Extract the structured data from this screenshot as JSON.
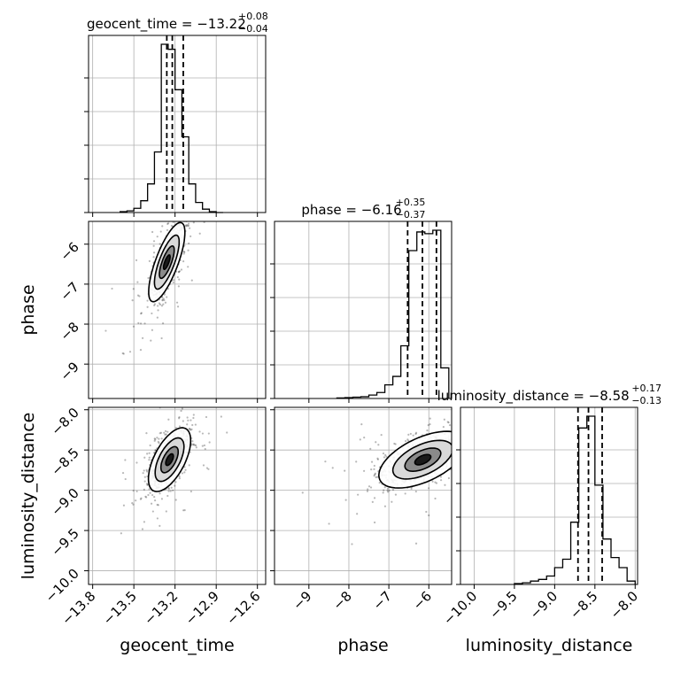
{
  "chart_data": {
    "type": "corner",
    "parameters": [
      "geocent_time",
      "phase",
      "luminosity_distance"
    ],
    "axis_labels": [
      "geocent_time",
      "phase",
      "luminosity_distance"
    ],
    "ranges": {
      "geocent_time": [
        -13.83,
        -12.54
      ],
      "phase": [
        -9.86,
        -5.43
      ],
      "luminosity_distance": [
        -10.17,
        -7.97
      ]
    },
    "ticks": {
      "geocent_time": [
        -13.8,
        -13.5,
        -13.2,
        -12.9,
        -12.6
      ],
      "phase": [
        -9,
        -8,
        -7,
        -6
      ],
      "luminosity_distance": [
        -10.0,
        -9.5,
        -9.0,
        -8.5,
        -8.0
      ]
    },
    "tick_labels": {
      "geocent_time": [
        "−13.8",
        "−13.5",
        "−13.2",
        "−12.9",
        "−12.6"
      ],
      "phase": [
        "−9",
        "−8",
        "−7",
        "−6"
      ],
      "luminosity_distance": [
        "−10.0",
        "−9.5",
        "−9.0",
        "−8.5",
        "−8.0"
      ]
    },
    "titles": [
      {
        "param": "geocent_time",
        "prefix": "geocent_time = −13.22",
        "sup": "+0.08",
        "sub": "−0.04"
      },
      {
        "param": "phase",
        "prefix": "phase = −6.16",
        "sup": "+0.35",
        "sub": "−0.37"
      },
      {
        "param": "luminosity_distance",
        "prefix": "luminosity_distance = −8.58",
        "sup": "+0.17",
        "sub": "−0.13"
      }
    ],
    "quantiles": {
      "geocent_time": [
        -13.26,
        -13.22,
        -13.14
      ],
      "phase": [
        -6.53,
        -6.16,
        -5.81
      ],
      "luminosity_distance": [
        -8.71,
        -8.58,
        -8.41
      ]
    },
    "histograms": {
      "geocent_time": {
        "edges": [
          -13.6,
          -13.55,
          -13.5,
          -13.45,
          -13.4,
          -13.35,
          -13.3,
          -13.25,
          -13.2,
          -13.15,
          -13.1,
          -13.05,
          -13.0,
          -12.95,
          -12.9,
          -12.85
        ],
        "counts": [
          0.005,
          0.01,
          0.025,
          0.07,
          0.17,
          0.36,
          1.0,
          0.97,
          0.73,
          0.45,
          0.17,
          0.06,
          0.02,
          0.005,
          0.0
        ]
      },
      "phase": {
        "edges": [
          -8.3,
          -8.1,
          -7.9,
          -7.7,
          -7.5,
          -7.3,
          -7.1,
          -6.9,
          -6.7,
          -6.5,
          -6.3,
          -6.1,
          -5.9,
          -5.7,
          -5.5
        ],
        "counts": [
          0.003,
          0.005,
          0.008,
          0.01,
          0.02,
          0.035,
          0.08,
          0.13,
          0.31,
          0.87,
          0.98,
          0.97,
          0.99,
          0.18
        ]
      },
      "luminosity_distance": {
        "edges": [
          -9.5,
          -9.4,
          -9.3,
          -9.2,
          -9.1,
          -9.0,
          -8.9,
          -8.8,
          -8.7,
          -8.6,
          -8.5,
          -8.4,
          -8.3,
          -8.2,
          -8.1,
          -8.0
        ],
        "counts": [
          0.005,
          0.01,
          0.02,
          0.03,
          0.05,
          0.1,
          0.15,
          0.37,
          0.93,
          1.0,
          0.59,
          0.27,
          0.16,
          0.1,
          0.02
        ]
      }
    },
    "contour_panels": [
      {
        "x": "geocent_time",
        "y": "phase",
        "center": [
          -13.26,
          -6.45
        ],
        "spread": [
          0.06,
          0.45
        ],
        "corr": 0.75,
        "n_points": 900
      },
      {
        "x": "geocent_time",
        "y": "luminosity_distance",
        "center": [
          -13.24,
          -8.62
        ],
        "spread": [
          0.07,
          0.18
        ],
        "corr": 0.6,
        "n_points": 900
      },
      {
        "x": "phase",
        "y": "luminosity_distance",
        "center": [
          -6.15,
          -8.62
        ],
        "spread": [
          0.5,
          0.16
        ],
        "corr": 0.55,
        "n_points": 900
      }
    ],
    "grid": true,
    "colors": {
      "line": "#000000",
      "point": "#000000",
      "grid": "#b0b0b0"
    }
  }
}
